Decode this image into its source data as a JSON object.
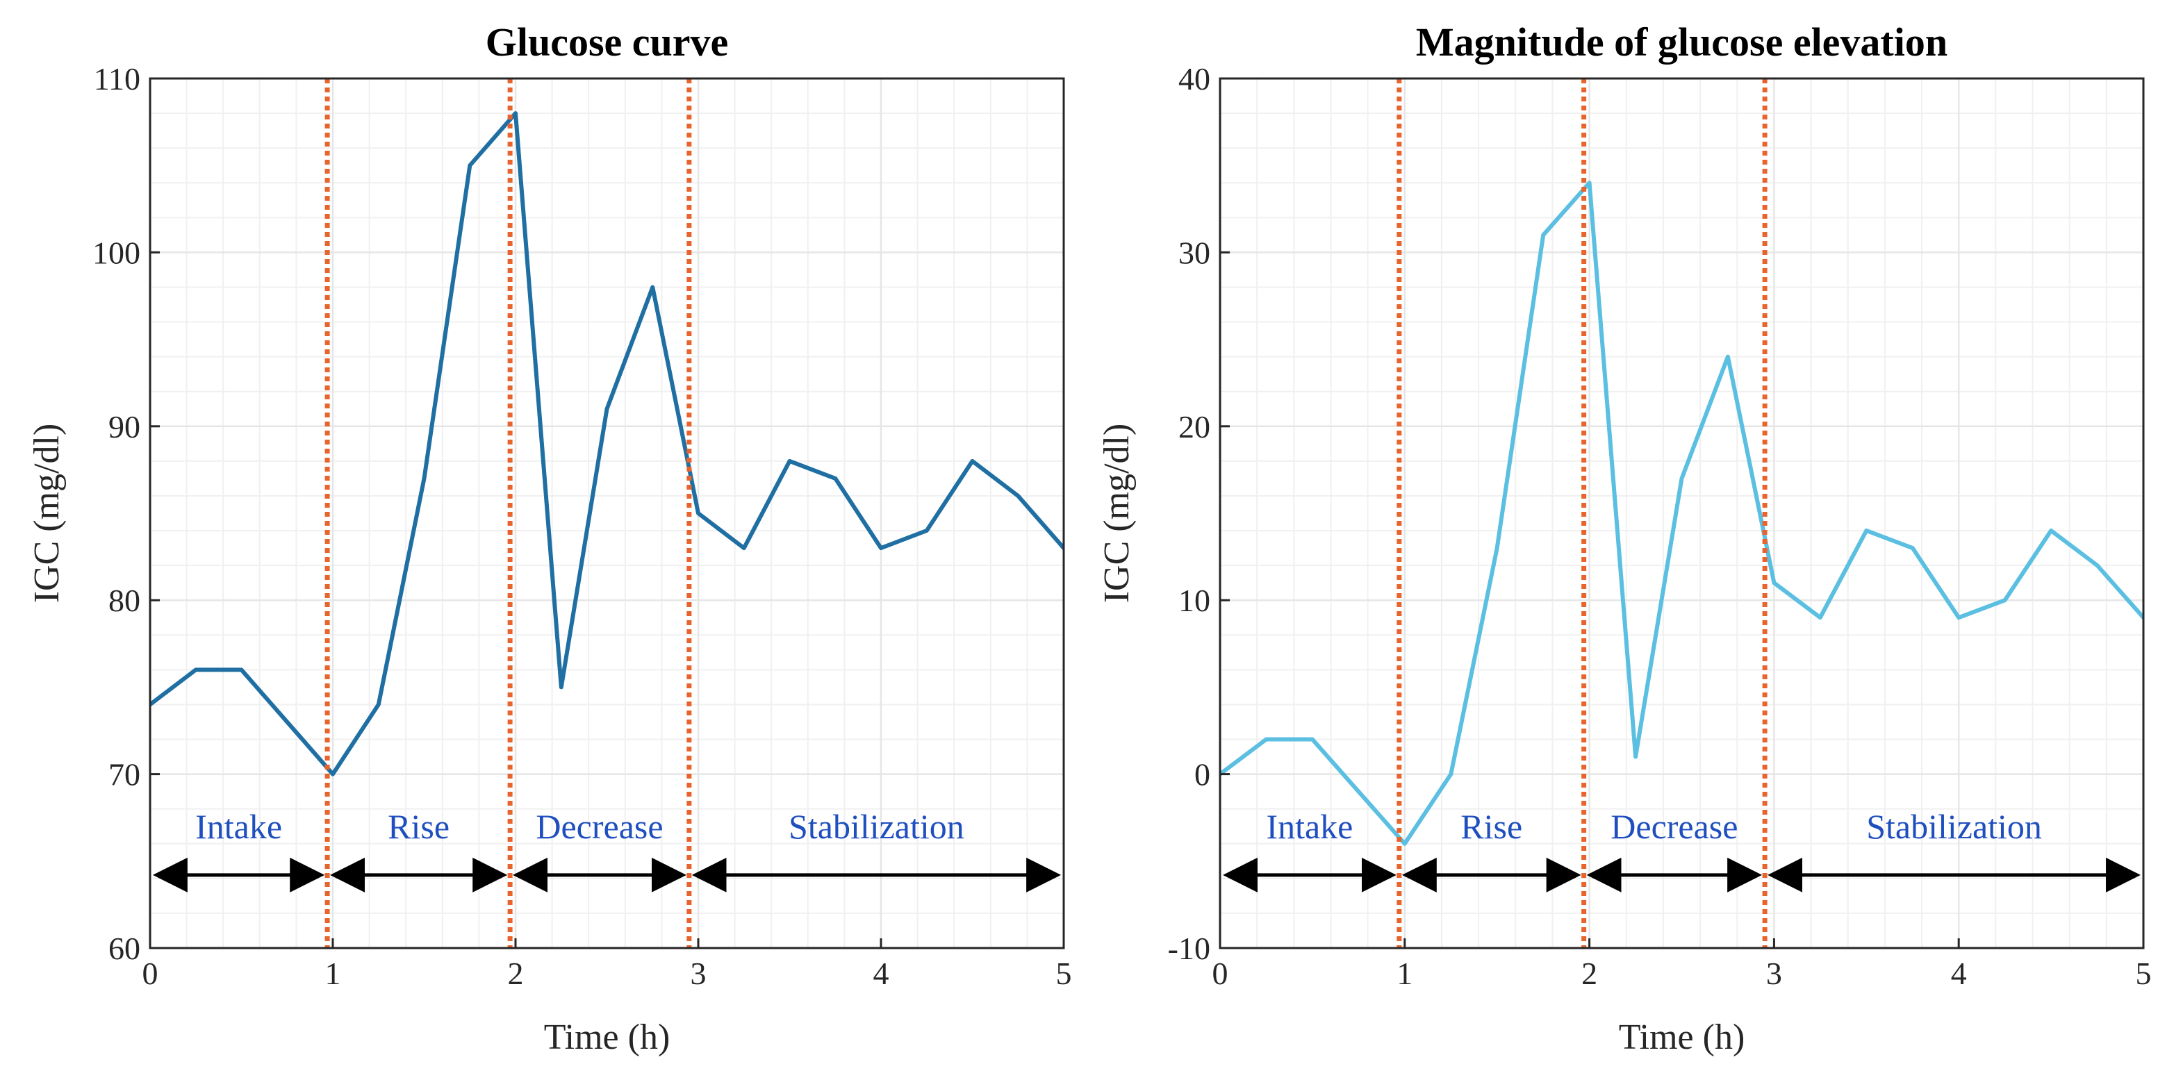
{
  "colors": {
    "series_left": "#1f6fa3",
    "series_right": "#5bbfe1",
    "boundary": "#e8642c",
    "phase_text": "#1f4fbf",
    "arrow": "#000000",
    "grid": "#e6e6e6"
  },
  "chart_data": [
    {
      "type": "line",
      "title": "Glucose curve",
      "xlabel": "Time (h)",
      "ylabel": "IGC (mg/dl)",
      "xlim": [
        0,
        5
      ],
      "ylim": [
        60,
        110
      ],
      "xticks": [
        0,
        1,
        2,
        3,
        4,
        5
      ],
      "yticks": [
        60,
        70,
        80,
        90,
        100,
        110
      ],
      "grid": true,
      "series": [
        {
          "x": [
            0,
            0.25,
            0.5,
            0.75,
            1.0,
            1.25,
            1.5,
            1.75,
            2.0,
            2.25,
            2.5,
            2.75,
            3.0,
            3.25,
            3.5,
            3.75,
            4.0,
            4.25,
            4.5,
            4.75,
            5.0,
            5.1
          ],
          "values": [
            74,
            76,
            76,
            73,
            70,
            74,
            87,
            105,
            108,
            75,
            91,
            98,
            85,
            83,
            88,
            87,
            83,
            84,
            88,
            86,
            83,
            83
          ]
        }
      ],
      "boundaries": [
        0.97,
        1.97,
        2.95
      ],
      "phases": [
        {
          "label": "Intake",
          "start": 0,
          "end": 0.97
        },
        {
          "label": "Rise",
          "start": 0.97,
          "end": 1.97
        },
        {
          "label": "Decrease",
          "start": 1.97,
          "end": 2.95
        },
        {
          "label": "Stabilization",
          "start": 2.95,
          "end": 5
        }
      ],
      "phase_y": 64.2,
      "phase_label_y": 66.3
    },
    {
      "type": "line",
      "title": "Magnitude of glucose elevation",
      "xlabel": "Time (h)",
      "ylabel": "IGC (mg/dl)",
      "xlim": [
        0,
        5
      ],
      "ylim": [
        -10,
        40
      ],
      "xticks": [
        0,
        1,
        2,
        3,
        4,
        5
      ],
      "yticks": [
        -10,
        0,
        10,
        20,
        30,
        40
      ],
      "grid": true,
      "series": [
        {
          "x": [
            0,
            0.25,
            0.5,
            0.75,
            1.0,
            1.25,
            1.5,
            1.75,
            2.0,
            2.25,
            2.5,
            2.75,
            3.0,
            3.25,
            3.5,
            3.75,
            4.0,
            4.25,
            4.5,
            4.75,
            5.0,
            5.1
          ],
          "values": [
            0,
            2,
            2,
            -1,
            -4,
            0,
            13,
            31,
            34,
            1,
            17,
            24,
            11,
            9,
            14,
            13,
            9,
            10,
            14,
            12,
            9,
            9
          ]
        }
      ],
      "boundaries": [
        0.97,
        1.97,
        2.95
      ],
      "phases": [
        {
          "label": "Intake",
          "start": 0,
          "end": 0.97
        },
        {
          "label": "Rise",
          "start": 0.97,
          "end": 1.97
        },
        {
          "label": "Decrease",
          "start": 1.97,
          "end": 2.95
        },
        {
          "label": "Stabilization",
          "start": 2.95,
          "end": 5
        }
      ],
      "phase_y": -5.8,
      "phase_label_y": -3.7
    }
  ]
}
